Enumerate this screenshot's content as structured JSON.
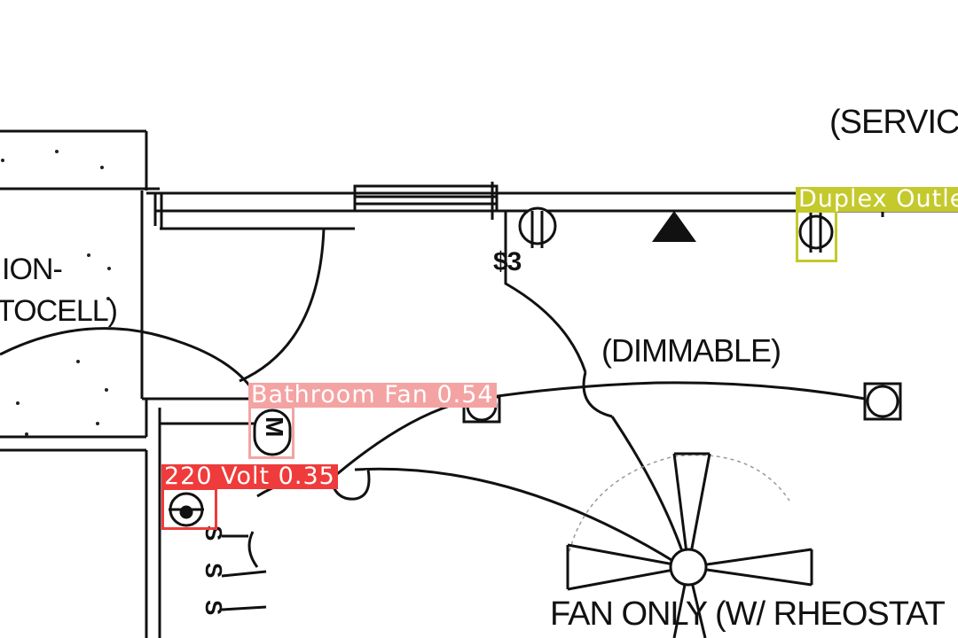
{
  "plan_labels": {
    "service": "(SERVICE",
    "dimmable": "(DIMMABLE)",
    "fan_only": "FAN ONLY (W/ RHEOSTAT",
    "ion": "ION-",
    "tocell": "TOCELL)",
    "switch_s3": "$3",
    "motor_mark": "M"
  },
  "detections": [
    {
      "label": "Duplex Outlet",
      "color": "#c4c92c"
    },
    {
      "label": "Bathroom Fan 0.54",
      "color": "#f4a3a3"
    },
    {
      "label": "220 Volt 0.35",
      "color": "#ef3b3b"
    }
  ],
  "symbols": [
    "duplex-outlet-icon",
    "triangle-marker-icon",
    "junction-box-icon",
    "ceiling-fan-icon",
    "switch-icon",
    "motor-fan-icon",
    "220v-outlet-icon"
  ]
}
